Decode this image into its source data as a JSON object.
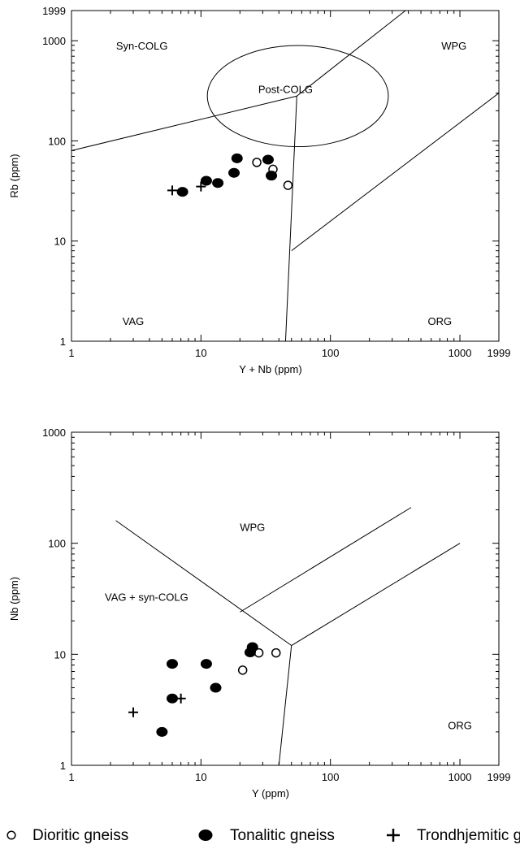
{
  "chart_data": [
    {
      "type": "scatter",
      "title": "",
      "xlabel": "Y + Nb (ppm)",
      "ylabel": "Rb (ppm)",
      "x_scale": "log",
      "y_scale": "log",
      "xlim": [
        1,
        2000
      ],
      "ylim": [
        1,
        2000
      ],
      "x_ticks": [
        {
          "value": 1,
          "label": "1"
        },
        {
          "value": 10,
          "label": "10"
        },
        {
          "value": 100,
          "label": "100"
        },
        {
          "value": 1000,
          "label": "1000"
        },
        {
          "value": 1999,
          "label": "1999"
        }
      ],
      "y_ticks": [
        {
          "value": 1,
          "label": "1"
        },
        {
          "value": 10,
          "label": "10"
        },
        {
          "value": 100,
          "label": "100"
        },
        {
          "value": 1000,
          "label": "1000"
        },
        {
          "value": 1999,
          "label": "1999"
        }
      ],
      "field_labels": [
        {
          "text": "Syn-COLG",
          "x": 3.5,
          "y": 900
        },
        {
          "text": "WPG",
          "x": 900,
          "y": 900
        },
        {
          "text": "Post-COLG",
          "x": 45,
          "y": 330
        },
        {
          "text": "VAG",
          "x": 3.0,
          "y": 1.6
        },
        {
          "text": "ORG",
          "x": 700,
          "y": 1.6
        }
      ],
      "boundary_lines": [
        [
          [
            1,
            80
          ],
          [
            55,
            280
          ]
        ],
        [
          [
            55,
            280
          ],
          [
            380,
            2000
          ]
        ],
        [
          [
            55,
            280
          ],
          [
            45,
            1
          ]
        ],
        [
          [
            50,
            8
          ],
          [
            2000,
            300
          ]
        ]
      ],
      "ellipses": [
        {
          "cx": 56,
          "cy": 280,
          "x_half_span": 5.0,
          "y_half_span": 3.2
        }
      ],
      "series": [
        {
          "name": "Dioritic gneiss",
          "marker": "open-circle",
          "x": [
            27,
            36,
            47
          ],
          "y": [
            61,
            52,
            36
          ]
        },
        {
          "name": "Tonalitic gneiss",
          "marker": "filled-circle",
          "x": [
            7.2,
            11,
            13.5,
            18,
            19,
            33,
            35
          ],
          "y": [
            31,
            40,
            38,
            48,
            67,
            65,
            45
          ]
        },
        {
          "name": "Trondhjemitic gneiss",
          "marker": "plus",
          "x": [
            6,
            10
          ],
          "y": [
            32,
            35
          ]
        }
      ]
    },
    {
      "type": "scatter",
      "title": "",
      "xlabel": "Y (ppm)",
      "ylabel": "Nb (ppm)",
      "x_scale": "log",
      "y_scale": "log",
      "xlim": [
        1,
        2000
      ],
      "ylim": [
        1,
        1000
      ],
      "x_ticks": [
        {
          "value": 1,
          "label": "1"
        },
        {
          "value": 10,
          "label": "10"
        },
        {
          "value": 100,
          "label": "100"
        },
        {
          "value": 1000,
          "label": "1000"
        },
        {
          "value": 1999,
          "label": "1999"
        }
      ],
      "y_ticks": [
        {
          "value": 1,
          "label": "1"
        },
        {
          "value": 10,
          "label": "10"
        },
        {
          "value": 100,
          "label": "100"
        },
        {
          "value": 1000,
          "label": "1000"
        }
      ],
      "field_labels": [
        {
          "text": "WPG",
          "x": 25,
          "y": 140
        },
        {
          "text": "VAG + syn-COLG",
          "x": 3.8,
          "y": 33
        },
        {
          "text": "ORG",
          "x": 1000,
          "y": 2.3
        }
      ],
      "boundary_lines": [
        [
          [
            2.2,
            160
          ],
          [
            50,
            12
          ]
        ],
        [
          [
            50,
            12
          ],
          [
            1000,
            100
          ]
        ],
        [
          [
            20,
            24
          ],
          [
            420,
            210
          ]
        ],
        [
          [
            50,
            12
          ],
          [
            40,
            1
          ]
        ]
      ],
      "ellipses": [],
      "series": [
        {
          "name": "Dioritic gneiss",
          "marker": "open-circle",
          "x": [
            21,
            28,
            38
          ],
          "y": [
            7.2,
            10.3,
            10.3
          ]
        },
        {
          "name": "Tonalitic gneiss",
          "marker": "filled-circle",
          "x": [
            5,
            6,
            6,
            11,
            13,
            24,
            25
          ],
          "y": [
            2,
            4,
            8.2,
            8.2,
            5,
            10.4,
            11.6
          ]
        },
        {
          "name": "Trondhjemitic gneiss",
          "marker": "plus",
          "x": [
            3,
            7
          ],
          "y": [
            3,
            4
          ]
        }
      ]
    }
  ],
  "legend": [
    {
      "label": "Dioritic gneiss",
      "marker": "open-circle"
    },
    {
      "label": "Tonalitic gneiss",
      "marker": "filled-circle"
    },
    {
      "label": "Trondhjemitic gneiss",
      "marker": "plus"
    }
  ]
}
